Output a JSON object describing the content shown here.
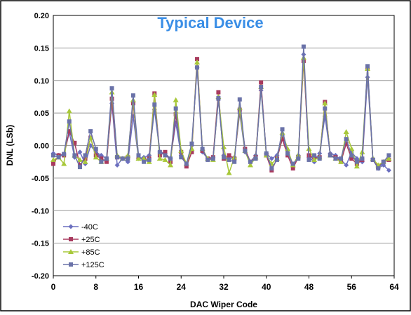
{
  "chart_data": {
    "type": "line",
    "title": "Typical Device",
    "xlabel": "DAC Wiper Code",
    "ylabel": "DNL (LSb)",
    "xlim": [
      0,
      64
    ],
    "ylim": [
      -0.2,
      0.2
    ],
    "x_ticks": [
      "0",
      "8",
      "16",
      "24",
      "32",
      "40",
      "48",
      "56",
      "64"
    ],
    "y_ticks": [
      "-0.20",
      "-0.15",
      "-0.10",
      "-0.05",
      "0.00",
      "0.05",
      "0.10",
      "0.15",
      "0.20"
    ],
    "grid": "horizontal",
    "legend_position": "lower-left",
    "x": [
      0,
      1,
      2,
      3,
      4,
      5,
      6,
      7,
      8,
      9,
      10,
      11,
      12,
      13,
      14,
      15,
      16,
      17,
      18,
      19,
      20,
      21,
      22,
      23,
      24,
      25,
      26,
      27,
      28,
      29,
      30,
      31,
      32,
      33,
      34,
      35,
      36,
      37,
      38,
      39,
      40,
      41,
      42,
      43,
      44,
      45,
      46,
      47,
      48,
      49,
      50,
      51,
      52,
      53,
      54,
      55,
      56,
      57,
      58,
      59,
      60,
      61,
      62,
      63
    ],
    "series": [
      {
        "name": "-40C",
        "color": "#6b6fbf",
        "marker": "diamond",
        "values": [
          -0.012,
          -0.015,
          -0.013,
          0.02,
          -0.018,
          -0.01,
          -0.028,
          0.0,
          -0.01,
          -0.015,
          -0.02,
          0.065,
          -0.03,
          -0.02,
          -0.025,
          0.045,
          -0.02,
          -0.018,
          -0.015,
          0.055,
          -0.01,
          -0.012,
          -0.02,
          0.035,
          -0.015,
          -0.03,
          0.0,
          0.12,
          -0.01,
          -0.02,
          -0.018,
          0.07,
          -0.015,
          -0.02,
          -0.018,
          0.05,
          -0.01,
          -0.025,
          -0.015,
          0.085,
          -0.012,
          -0.02,
          -0.015,
          0.015,
          -0.01,
          -0.03,
          -0.015,
          0.14,
          -0.018,
          -0.025,
          -0.012,
          0.045,
          -0.012,
          -0.015,
          -0.022,
          -0.03,
          -0.01,
          -0.02,
          -0.025,
          0.105,
          -0.02,
          -0.035,
          -0.03,
          -0.038
        ]
      },
      {
        "name": "+25C",
        "color": "#a83a5e",
        "marker": "square",
        "values": [
          -0.028,
          -0.015,
          -0.015,
          0.022,
          0.004,
          -0.03,
          -0.02,
          0.012,
          -0.015,
          -0.02,
          -0.025,
          0.072,
          -0.018,
          -0.02,
          -0.018,
          0.065,
          -0.018,
          -0.022,
          -0.02,
          0.08,
          -0.015,
          -0.01,
          -0.025,
          0.048,
          -0.01,
          -0.032,
          -0.01,
          0.133,
          -0.008,
          -0.02,
          -0.018,
          0.082,
          -0.02,
          -0.015,
          -0.02,
          0.055,
          -0.005,
          -0.025,
          -0.018,
          0.097,
          -0.015,
          -0.038,
          -0.02,
          0.01,
          -0.015,
          -0.035,
          -0.018,
          0.13,
          -0.015,
          -0.018,
          -0.018,
          0.067,
          -0.015,
          -0.018,
          -0.025,
          0.003,
          -0.02,
          -0.028,
          -0.022,
          0.12,
          -0.022,
          -0.033,
          -0.025,
          -0.022
        ]
      },
      {
        "name": "+85C",
        "color": "#a8c83a",
        "marker": "triangle",
        "values": [
          -0.022,
          -0.018,
          -0.028,
          0.053,
          -0.015,
          -0.022,
          -0.025,
          0.012,
          -0.018,
          -0.025,
          -0.02,
          0.082,
          -0.015,
          -0.02,
          -0.015,
          0.07,
          -0.02,
          -0.02,
          -0.025,
          0.078,
          -0.02,
          -0.022,
          -0.03,
          0.07,
          -0.008,
          -0.028,
          -0.005,
          0.128,
          -0.005,
          -0.02,
          -0.022,
          0.075,
          -0.002,
          -0.042,
          -0.018,
          0.058,
          -0.008,
          -0.03,
          -0.018,
          0.09,
          -0.015,
          -0.028,
          -0.02,
          0.02,
          -0.005,
          -0.03,
          -0.015,
          0.135,
          -0.005,
          -0.022,
          -0.018,
          0.065,
          -0.015,
          -0.02,
          -0.025,
          0.021,
          -0.005,
          -0.032,
          -0.01,
          0.118,
          -0.02,
          -0.03,
          -0.025,
          -0.02
        ]
      },
      {
        "name": "+125C",
        "color": "#6a72a8",
        "marker": "square",
        "values": [
          -0.015,
          -0.018,
          -0.013,
          0.037,
          -0.015,
          -0.033,
          -0.015,
          0.022,
          -0.005,
          -0.025,
          -0.02,
          0.088,
          -0.018,
          -0.02,
          -0.02,
          0.077,
          -0.015,
          -0.025,
          -0.022,
          0.063,
          -0.01,
          -0.015,
          -0.02,
          0.057,
          -0.018,
          -0.028,
          0.003,
          0.12,
          -0.005,
          -0.022,
          -0.02,
          0.073,
          -0.018,
          -0.022,
          -0.025,
          0.071,
          -0.008,
          -0.025,
          -0.02,
          0.09,
          -0.012,
          -0.035,
          -0.022,
          0.025,
          -0.012,
          -0.028,
          -0.02,
          0.152,
          -0.022,
          -0.015,
          -0.02,
          0.057,
          -0.015,
          -0.02,
          -0.02,
          0.01,
          -0.015,
          -0.025,
          -0.02,
          0.122,
          -0.022,
          -0.035,
          -0.025,
          -0.015
        ]
      }
    ]
  }
}
